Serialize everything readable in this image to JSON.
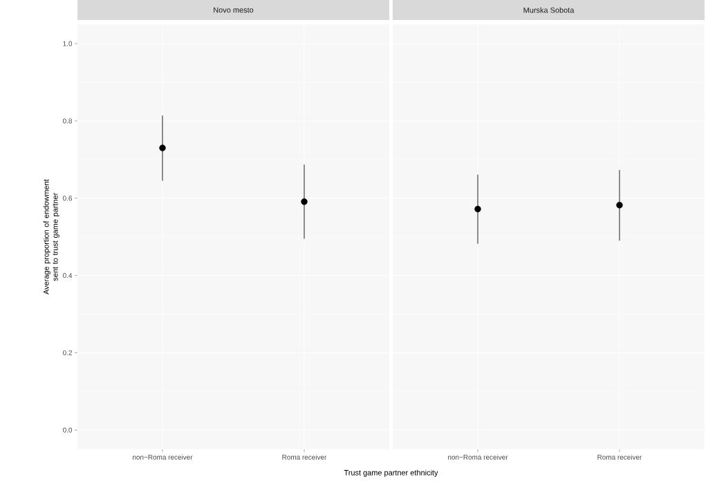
{
  "chart_data": [
    {
      "type": "scatter",
      "title": "Novo mesto",
      "xlabel": "Trust game partner ethnicity",
      "ylabel": "Average proportion of endowment sent to trust game partner",
      "categories": [
        "non−Roma receiver",
        "Roma receiver"
      ],
      "series": [
        {
          "color": "#000000",
          "values": [
            0.73,
            0.591
          ],
          "errors": [
            [
              0.645,
              0.814
            ],
            [
              0.495,
              0.687
            ]
          ]
        }
      ],
      "ylim": [
        -0.05,
        1.05
      ],
      "yticks": [
        {
          "value": 0,
          "label": "0.0"
        },
        0.2,
        0.4,
        0.6,
        0.8,
        {
          "value": 1,
          "label": "1.0"
        }
      ],
      "grid": true
    },
    {
      "type": "scatter",
      "title": "Murska Sobota",
      "categories": [
        "non−Roma receiver",
        "Roma receiver"
      ],
      "series": [
        {
          "color": "#000000",
          "values": [
            0.572,
            0.582
          ],
          "errors": [
            [
              0.482,
              0.661
            ],
            [
              0.49,
              0.673
            ]
          ]
        }
      ],
      "ylim": [
        -0.05,
        1.05
      ],
      "yticks": [
        0,
        0.2,
        0.4,
        0.6,
        0.8,
        1
      ],
      "grid": true,
      "tick_labels": "x"
    }
  ]
}
